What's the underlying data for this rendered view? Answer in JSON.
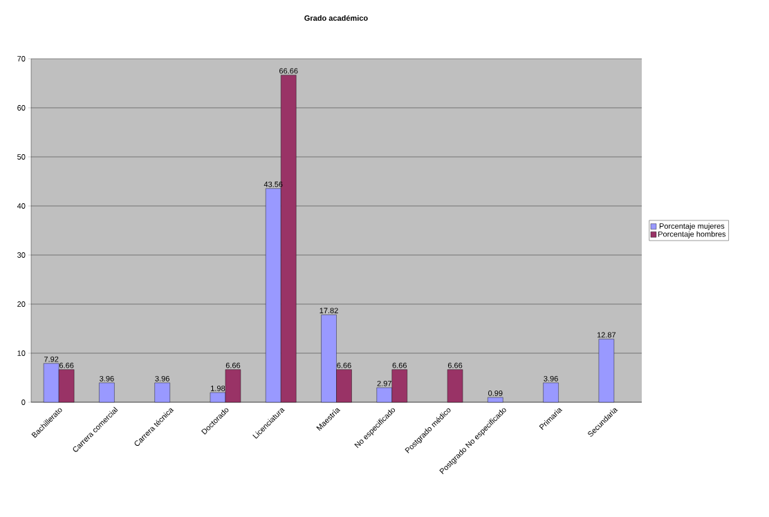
{
  "chart_data": {
    "type": "bar",
    "title": "Grado académico",
    "categories": [
      "Bachillerato",
      "Carrera comercial",
      "Carrera técnica",
      "Doctorado",
      "Licenciatura",
      "Maestría",
      "No especificado",
      "Postgrado médico",
      "Postgrado No especificado",
      "Primaria",
      "Secundaria"
    ],
    "series": [
      {
        "name": "Porcentaje mujeres",
        "color": "#9999ff",
        "values": [
          7.92,
          3.96,
          3.96,
          1.98,
          43.56,
          17.82,
          2.97,
          null,
          0.99,
          3.96,
          12.87
        ]
      },
      {
        "name": "Porcentaje hombres",
        "color": "#993366",
        "values": [
          6.66,
          null,
          null,
          6.66,
          66.66,
          6.66,
          6.66,
          6.66,
          null,
          null,
          null
        ]
      }
    ],
    "ylim": [
      0,
      70
    ],
    "yticks": [
      0,
      10,
      20,
      30,
      40,
      50,
      60,
      70
    ],
    "grid": "y",
    "legend": "right",
    "data_labels": true
  }
}
